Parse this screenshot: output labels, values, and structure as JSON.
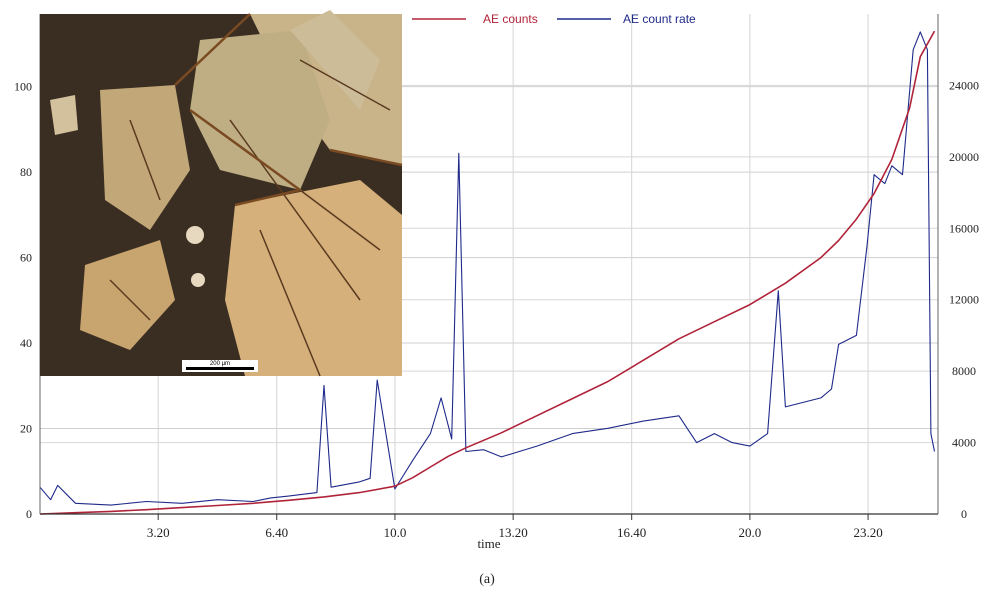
{
  "chart_data": {
    "type": "line",
    "xlabel": "time",
    "caption": "(a)",
    "x_tick_labels": [
      "3.20",
      "6.40",
      "10.0",
      "13.20",
      "16.40",
      "20.0",
      "23.20"
    ],
    "x_tick_values": [
      3.33,
      6.67,
      10.0,
      13.33,
      16.67,
      20.0,
      23.33
    ],
    "xlim": [
      0,
      25.3
    ],
    "y_left_ticks": [
      0,
      20,
      40,
      60,
      80,
      100
    ],
    "y_left_lim": [
      0,
      117
    ],
    "y_right_ticks": [
      0,
      4000,
      8000,
      12000,
      16000,
      20000,
      24000
    ],
    "y_right_lim": [
      0,
      28000
    ],
    "legend_position": "top",
    "inset_scale_label": "200 μm",
    "colors": {
      "ae_counts": "#b0243a",
      "ae_count_rate": "#1e2a8a"
    },
    "series": [
      {
        "name": "AE counts",
        "axis": "left",
        "x": [
          0,
          1,
          2,
          3,
          4,
          5,
          6,
          7,
          8,
          9,
          10,
          10.5,
          11,
          11.5,
          12,
          13,
          14,
          15,
          16,
          17,
          18,
          19,
          20,
          21,
          22,
          22.5,
          23,
          23.5,
          24,
          24.5,
          24.8,
          25.2
        ],
        "y": [
          0,
          0.3,
          0.6,
          1,
          1.5,
          2,
          2.5,
          3.2,
          4,
          5,
          6.5,
          8.5,
          11,
          13.5,
          15.5,
          19,
          23,
          27,
          31,
          36,
          41,
          45,
          49,
          54,
          60,
          64,
          69,
          75,
          83,
          95,
          107,
          113
        ]
      },
      {
        "name": "AE count rate",
        "axis": "right",
        "x": [
          0,
          0.3,
          0.5,
          1,
          2,
          3,
          4,
          5,
          6,
          6.5,
          7,
          7.8,
          8,
          8.2,
          9,
          9.3,
          9.5,
          10,
          10.5,
          11,
          11.3,
          11.6,
          11.8,
          12,
          12.5,
          13,
          14,
          15,
          16,
          17,
          18,
          18.5,
          19,
          19.5,
          20,
          20.5,
          20.8,
          21,
          22,
          22.3,
          22.5,
          23,
          23.3,
          23.5,
          23.8,
          24,
          24.3,
          24.6,
          24.8,
          25,
          25.1,
          25.2
        ],
        "y": [
          1500,
          800,
          1600,
          600,
          500,
          700,
          600,
          800,
          700,
          900,
          1000,
          1200,
          7200,
          1500,
          1800,
          2000,
          7500,
          1400,
          3000,
          4500,
          6500,
          4200,
          20200,
          3500,
          3600,
          3200,
          3800,
          4500,
          4800,
          5200,
          5500,
          4000,
          4500,
          4000,
          3800,
          4500,
          12500,
          6000,
          6500,
          7000,
          9500,
          10000,
          15000,
          19000,
          18500,
          19500,
          19000,
          26000,
          27000,
          26000,
          4500,
          3500
        ]
      }
    ]
  }
}
